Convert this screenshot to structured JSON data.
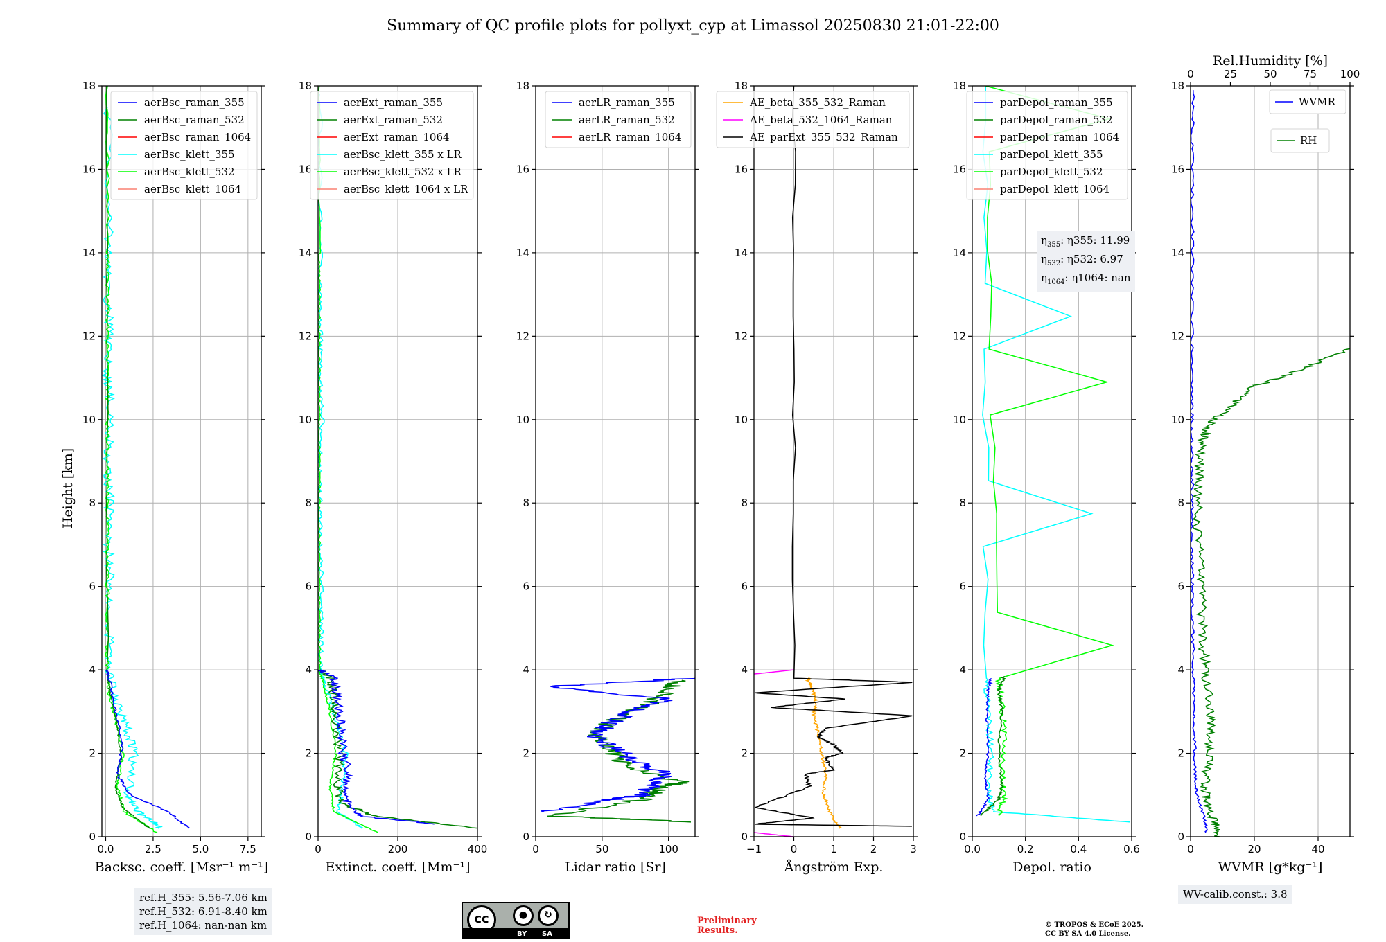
{
  "title": "Summary of QC profile plots for pollyxt_cyp at Limassol 20250830 21:01-22:00",
  "ylabel": "Height [km]",
  "colors": {
    "blue": "#0000ff",
    "green": "#008000",
    "red": "#ff0000",
    "cyan": "#00ffff",
    "lime": "#00ff00",
    "salmon": "#fa8072",
    "orange": "#ffa500",
    "magenta": "#ff00ff",
    "black": "#000000"
  },
  "chart_data": [
    {
      "type": "line",
      "xlabel": "Backsc. coeff. [Msr⁻¹ m⁻¹]",
      "xlim": [
        -0.2,
        8.2
      ],
      "ylim": [
        0,
        18
      ],
      "xticks": [
        0.0,
        2.5,
        5.0,
        7.5
      ],
      "xtick_labels": [
        "0.0",
        "2.5",
        "5.0",
        "7.5"
      ],
      "yticks": [
        0,
        2,
        4,
        6,
        8,
        10,
        12,
        14,
        16,
        18
      ],
      "legend": [
        "aerBsc_raman_355",
        "aerBsc_raman_532",
        "aerBsc_raman_1064",
        "aerBsc_klett_355",
        "aerBsc_klett_532",
        "aerBsc_klett_1064"
      ],
      "legend_colors": [
        "blue",
        "green",
        "red",
        "cyan",
        "lime",
        "salmon"
      ],
      "legend_placement": "top-right",
      "series": [
        {
          "name": "aerBsc_klett_355",
          "color": "cyan",
          "x": [
            2.9,
            1.7,
            1.2,
            1.5,
            1.1,
            0.6,
            0.15,
            0.2,
            0.3,
            0.1,
            0.2,
            0.1,
            0.3,
            0.1,
            0.2,
            0.1,
            0.2,
            0.1
          ],
          "y": [
            0.2,
            0.6,
            1.0,
            2.0,
            2.6,
            3.2,
            4.0,
            5.0,
            6.0,
            7.0,
            8.0,
            9.0,
            10.2,
            11.0,
            12.0,
            13.0,
            14.5,
            17.5
          ],
          "jitter": 0.25
        },
        {
          "name": "aerBsc_klett_532",
          "color": "lime",
          "x": [
            2.7,
            1.0,
            0.6,
            0.9,
            0.6,
            0.2,
            0.1,
            0.1,
            0.1,
            0.1,
            0.1,
            0.1,
            0.1,
            0.1,
            0.1,
            0.1,
            0.1,
            0.1
          ],
          "y": [
            0.1,
            0.6,
            1.2,
            2.0,
            2.7,
            3.4,
            4.0,
            5.0,
            6.0,
            7.0,
            8.0,
            9.0,
            10.0,
            11.0,
            12.0,
            13.0,
            14.0,
            18.0
          ],
          "jitter": 0.1
        },
        {
          "name": "aerBsc_raman_532",
          "color": "green",
          "x": [
            2.3,
            0.9,
            0.5,
            0.8,
            0.6,
            0.2,
            0.1,
            0.05
          ],
          "y": [
            0.2,
            0.7,
            1.2,
            1.9,
            2.7,
            3.5,
            4.0,
            18.0
          ],
          "jitter": 0.05
        },
        {
          "name": "aerBsc_raman_355",
          "color": "blue",
          "x": [
            4.4,
            3.3,
            1.3,
            0.6,
            0.9,
            0.5,
            0.2,
            0.05
          ],
          "y": [
            0.2,
            0.6,
            1.0,
            1.5,
            2.2,
            3.0,
            3.8,
            4.0
          ],
          "jitter": 0.08
        }
      ],
      "annotation": [
        "ref.H_355: 5.56-7.06 km",
        "ref.H_532: 6.91-8.40 km",
        "ref.H_1064: nan-nan km"
      ]
    },
    {
      "type": "line",
      "xlabel": "Extinct. coeff. [Mm⁻¹]",
      "xlim": [
        0,
        400
      ],
      "ylim": [
        0,
        18
      ],
      "xticks": [
        0,
        200,
        400
      ],
      "xtick_labels": [
        "0",
        "200",
        "400"
      ],
      "yticks": [
        0,
        2,
        4,
        6,
        8,
        10,
        12,
        14,
        16,
        18
      ],
      "legend": [
        "aerExt_raman_355",
        "aerExt_raman_532",
        "aerExt_raman_1064",
        "aerBsc_klett_355 x LR",
        "aerBsc_klett_532 x LR",
        "aerBsc_klett_1064 x LR"
      ],
      "legend_colors": [
        "blue",
        "green",
        "red",
        "cyan",
        "lime",
        "salmon"
      ],
      "legend_placement": "top-right",
      "series": [
        {
          "name": "aerBsc_klett_355 x LR",
          "color": "cyan",
          "x": [
            110,
            50,
            60,
            70,
            40,
            20,
            5,
            8,
            10,
            4,
            6,
            3,
            12,
            4,
            6,
            3,
            8,
            4
          ],
          "y": [
            0.2,
            0.6,
            1.2,
            2.0,
            3.0,
            3.6,
            4.0,
            5.0,
            6.0,
            7.0,
            8.0,
            9.0,
            10.2,
            11.0,
            12.0,
            13.0,
            14.8,
            17.8
          ],
          "jitter": 6
        },
        {
          "name": "aerBsc_klett_532 x LR",
          "color": "lime",
          "x": [
            150,
            40,
            30,
            45,
            30,
            15,
            4,
            3,
            3,
            3,
            3,
            3,
            3,
            3,
            3,
            3,
            3,
            3
          ],
          "y": [
            0.1,
            0.6,
            1.2,
            2.0,
            3.0,
            3.6,
            4.0,
            5.0,
            6.0,
            7.0,
            8.0,
            9.0,
            10.0,
            11.0,
            12.0,
            13.0,
            14.0,
            18.0
          ],
          "jitter": 3
        },
        {
          "name": "aerExt_raman_532",
          "color": "green",
          "x": [
            400,
            140,
            60,
            50,
            55,
            45,
            40,
            30,
            5
          ],
          "y": [
            0.2,
            0.5,
            0.8,
            1.2,
            2.0,
            2.8,
            3.4,
            3.8,
            4.0
          ],
          "jitter": 12
        },
        {
          "name": "aerExt_raman_355",
          "color": "blue",
          "x": [
            300,
            100,
            70,
            75,
            60,
            55,
            45,
            40,
            5
          ],
          "y": [
            0.3,
            0.5,
            0.9,
            1.5,
            2.2,
            2.8,
            3.4,
            3.8,
            4.0
          ],
          "jitter": 12
        }
      ]
    },
    {
      "type": "line",
      "xlabel": "Lidar ratio [Sr]",
      "xlim": [
        0,
        120
      ],
      "ylim": [
        0,
        18
      ],
      "xticks": [
        0,
        50,
        100
      ],
      "xtick_labels": [
        "0",
        "50",
        "100"
      ],
      "yticks": [
        0,
        2,
        4,
        6,
        8,
        10,
        12,
        14,
        16,
        18
      ],
      "legend": [
        "aerLR_raman_355",
        "aerLR_raman_532",
        "aerLR_raman_1064"
      ],
      "legend_colors": [
        "blue",
        "green",
        "red"
      ],
      "legend_placement": "top-right",
      "series": [
        {
          "name": "aerLR_raman_532",
          "color": "green",
          "x": [
            120,
            10,
            80,
            95,
            110,
            70,
            55,
            45,
            60,
            80,
            95,
            110
          ],
          "y": [
            0.35,
            0.5,
            0.9,
            1.2,
            1.3,
            1.7,
            2.1,
            2.5,
            2.8,
            3.1,
            3.4,
            3.75
          ],
          "jitter": 8
        },
        {
          "name": "aerLR_raman_355",
          "color": "blue",
          "x": [
            5,
            60,
            80,
            90,
            100,
            75,
            60,
            45,
            55,
            70,
            100,
            10,
            120
          ],
          "y": [
            0.6,
            0.9,
            1.0,
            1.3,
            1.5,
            1.8,
            2.1,
            2.4,
            2.7,
            3.0,
            3.3,
            3.6,
            3.8
          ],
          "jitter": 8
        }
      ]
    },
    {
      "type": "line",
      "xlabel": "Ångström Exp.",
      "xlim": [
        -1,
        3
      ],
      "ylim": [
        0,
        18
      ],
      "xticks": [
        -1,
        0,
        1,
        2,
        3
      ],
      "xtick_labels": [
        "−1",
        "0",
        "1",
        "2",
        "3"
      ],
      "yticks": [
        0,
        2,
        4,
        6,
        8,
        10,
        12,
        14,
        16,
        18
      ],
      "legend": [
        "AE_beta_355_532_Raman",
        "AE_beta_532_1064_Raman",
        "AE_parExt_355_532_Raman"
      ],
      "legend_colors": [
        "orange",
        "magenta",
        "black"
      ],
      "legend_placement": "top-right",
      "series": [
        {
          "name": "AE_beta_355_532_Raman",
          "color": "orange",
          "x": [
            1.15,
            0.9,
            0.75,
            0.8,
            0.7,
            0.6,
            0.5,
            0.55,
            0.45,
            0.35,
            0.4
          ],
          "y": [
            0.2,
            0.6,
            1.0,
            1.5,
            2.0,
            2.5,
            2.9,
            3.3,
            3.6,
            3.75,
            3.8
          ],
          "jitter": 0.04
        },
        {
          "name": "AE_beta_532_1064_Raman",
          "color": "magenta",
          "x": [
            -1.0,
            0.0
          ],
          "y": [
            0.1,
            0.0
          ],
          "jitter": 0
        },
        {
          "name": "AE_beta_532_1064_Raman_upper",
          "color": "magenta",
          "x": [
            -1.0,
            0.0
          ],
          "y": [
            3.9,
            4.0
          ],
          "jitter": 0
        },
        {
          "name": "AE_parExt_355_532_Raman",
          "color": "black",
          "x": [
            3.0,
            -1.0,
            0.5,
            -1.0,
            0.4,
            0.3,
            1.0,
            0.8,
            1.2,
            1.0,
            0.6,
            0.8,
            3.0,
            -0.6,
            1.3,
            -1.0,
            3.0,
            0.0,
            0.0
          ],
          "y": [
            0.25,
            0.3,
            0.45,
            0.7,
            1.2,
            1.5,
            1.6,
            1.9,
            2.0,
            2.2,
            2.4,
            2.6,
            2.9,
            3.1,
            3.3,
            3.45,
            3.7,
            3.8,
            18.0
          ],
          "jitter": 0.05
        }
      ]
    },
    {
      "type": "line",
      "xlabel": "Depol. ratio",
      "xlim": [
        0,
        0.6
      ],
      "ylim": [
        0,
        18
      ],
      "xticks": [
        0.0,
        0.2,
        0.4,
        0.6
      ],
      "xtick_labels": [
        "0.0",
        "0.2",
        "0.4",
        "0.6"
      ],
      "yticks": [
        0,
        2,
        4,
        6,
        8,
        10,
        12,
        14,
        16,
        18
      ],
      "legend": [
        "parDepol_raman_355",
        "parDepol_raman_532",
        "parDepol_raman_1064",
        "parDepol_klett_355",
        "parDepol_klett_532",
        "parDepol_klett_1064"
      ],
      "legend_colors": [
        "blue",
        "green",
        "red",
        "cyan",
        "lime",
        "salmon"
      ],
      "legend_placement": "top-right",
      "series": [
        {
          "name": "parDepol_klett_355",
          "color": "cyan",
          "spiky": true,
          "x": [
            0.6,
            0.08,
            0.06,
            0.07,
            0.06,
            0.05,
            0.05
          ],
          "y": [
            0.35,
            0.6,
            1.2,
            2.0,
            3.0,
            3.8,
            18.0
          ],
          "jitter": 0.012
        },
        {
          "name": "parDepol_klett_532",
          "color": "lime",
          "spiky": true,
          "x": [
            0.1,
            0.12,
            0.11,
            0.12,
            0.11,
            0.1,
            0.05
          ],
          "y": [
            0.5,
            1.0,
            1.5,
            2.5,
            3.2,
            3.8,
            18.0
          ],
          "jitter": 0.012
        },
        {
          "name": "parDepol_raman_532",
          "color": "green",
          "x": [
            0.03,
            0.1,
            0.11,
            0.1,
            0.11,
            0.1,
            0.12
          ],
          "y": [
            0.5,
            0.9,
            1.2,
            2.0,
            3.0,
            3.5,
            3.85
          ],
          "jitter": 0.006
        },
        {
          "name": "parDepol_raman_355",
          "color": "blue",
          "x": [
            0.02,
            0.06,
            0.05,
            0.06,
            0.055,
            0.06,
            0.07
          ],
          "y": [
            0.5,
            0.9,
            1.4,
            2.2,
            3.0,
            3.5,
            3.8
          ],
          "jitter": 0.005
        }
      ],
      "annotation": [
        "η355: 11.99",
        "η532: 6.97",
        "η1064: nan"
      ]
    },
    {
      "type": "line",
      "xlabel": "WVMR [g*kg⁻¹]",
      "xlim": [
        0,
        50
      ],
      "ylim": [
        0,
        18
      ],
      "xticks": [
        0,
        20,
        40
      ],
      "xtick_labels": [
        "0",
        "20",
        "40"
      ],
      "yticks": [
        0,
        2,
        4,
        6,
        8,
        10,
        12,
        14,
        16,
        18
      ],
      "top_axis": {
        "label": "Rel.Humidity [%]",
        "lim": [
          0,
          100
        ],
        "ticks": [
          0,
          25,
          50,
          75,
          100
        ],
        "tick_labels": [
          "0",
          "25",
          "50",
          "75",
          "100"
        ]
      },
      "legend": [
        "WVMR",
        "RH"
      ],
      "legend_colors": [
        "blue",
        "green"
      ],
      "legend_placement": "top-right",
      "series": [
        {
          "name": "WVMR",
          "color": "blue",
          "x": [
            5,
            4,
            2,
            1.5,
            1.2,
            1.0,
            0.8,
            0.6,
            0.5,
            0.4,
            0.5,
            0.3,
            0.5,
            0.4,
            0.6,
            0.5,
            0.8
          ],
          "y": [
            0.1,
            0.5,
            1.0,
            1.5,
            2.5,
            3.5,
            4.5,
            5.5,
            6.5,
            7.5,
            8.5,
            9.5,
            10.5,
            12.5,
            14.5,
            16.5,
            17.9
          ],
          "jitter": 0.5
        },
        {
          "name": "RH",
          "color": "green",
          "axis": "top",
          "x": [
            18,
            15,
            10,
            9,
            11,
            13,
            12,
            10,
            8,
            7,
            6,
            4,
            5,
            6,
            8,
            12,
            25,
            40,
            70,
            100
          ],
          "y": [
            0.0,
            0.3,
            0.8,
            1.2,
            1.8,
            2.5,
            3.0,
            3.8,
            4.5,
            5.5,
            6.5,
            7.5,
            8.5,
            9.2,
            9.6,
            9.9,
            10.3,
            10.8,
            11.2,
            11.7
          ],
          "jitter": 3
        }
      ],
      "annotation": [
        "WV-calib.const.: 3.8"
      ]
    }
  ],
  "license": {
    "cc": "cc",
    "by": "BY",
    "sa": "SA"
  },
  "preliminary": [
    "Preliminary",
    "Results."
  ],
  "copyright": [
    "© TROPOS & ECoE 2025.",
    "CC BY SA 4.0 License."
  ]
}
